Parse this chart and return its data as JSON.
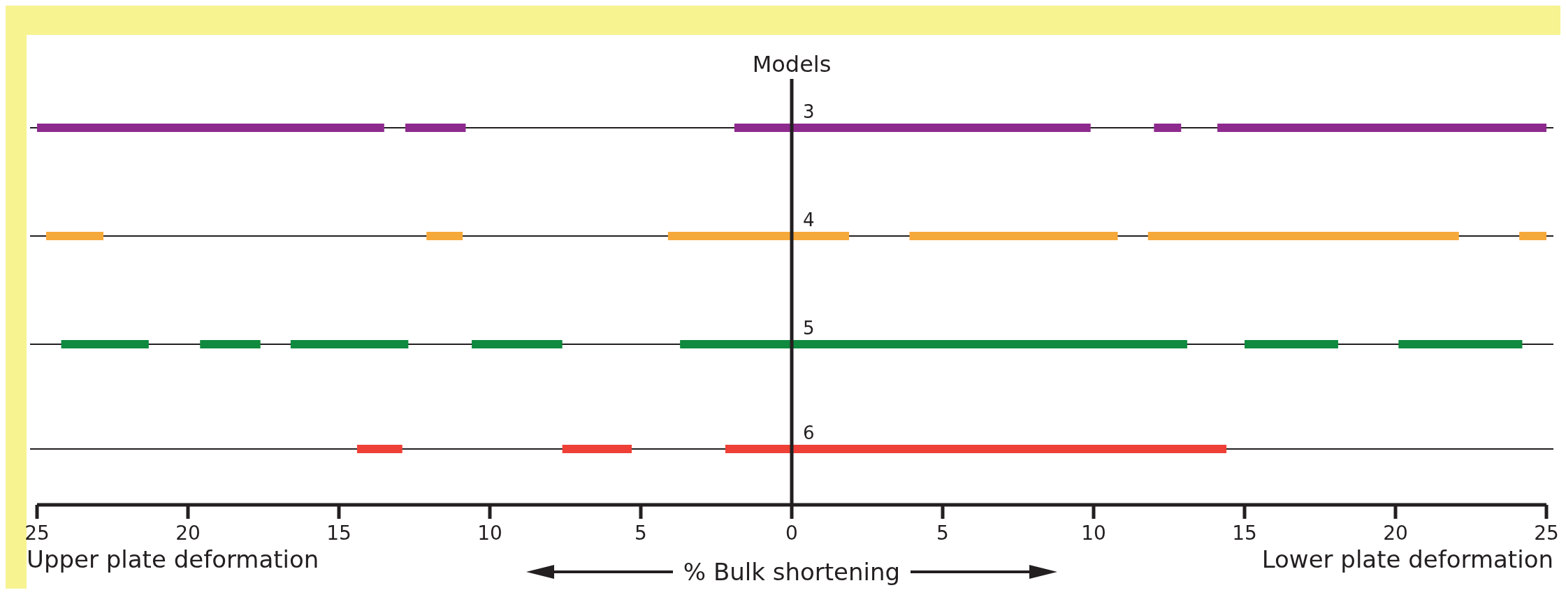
{
  "chart_data": {
    "type": "bar",
    "orientation": "horizontal",
    "ylabel": "Models",
    "xlabel": "% Bulk shortening",
    "annotations": [
      "Upper plate deformation",
      "Lower plate deformation"
    ],
    "categories": [
      "3",
      "4",
      "5",
      "6"
    ],
    "xlim": [
      -25,
      25
    ],
    "xticks": [
      {
        "value": -25,
        "label": "25"
      },
      {
        "value": -20,
        "label": "20"
      },
      {
        "value": -15,
        "label": "15"
      },
      {
        "value": -10,
        "label": "10"
      },
      {
        "value": -5,
        "label": "5"
      },
      0,
      5,
      10,
      15,
      20,
      25
    ],
    "grid": "y",
    "series": [
      {
        "colors": [
          "#8e2a8e",
          "#f6a93b",
          "#0f8a3e",
          "#ee4036"
        ],
        "base": [
          -25,
          -24.7,
          -24.2,
          -14.4
        ],
        "values": [
          11.5,
          1.9,
          2.9,
          1.5
        ]
      },
      {
        "colors": [
          "#8e2a8e",
          "#f6a93b",
          "#0f8a3e",
          "#ee4036"
        ],
        "base": [
          -12.8,
          -12.1,
          -19.6,
          -7.6
        ],
        "values": [
          2.0,
          1.2,
          2.0,
          2.3
        ]
      },
      {
        "colors": [
          "#8e2a8e",
          "#f6a93b",
          "#0f8a3e",
          "#ee4036"
        ],
        "base": [
          -1.9,
          -4.1,
          -16.6,
          -2.2
        ],
        "values": [
          11.8,
          6.0,
          3.9,
          16.6
        ]
      },
      {
        "colors": [
          "#8e2a8e",
          "#f6a93b",
          "#0f8a3e",
          null
        ],
        "base": [
          12.0,
          3.9,
          -10.6,
          null
        ],
        "values": [
          0.9,
          6.9,
          3.0,
          null
        ]
      },
      {
        "colors": [
          "#8e2a8e",
          "#f6a93b",
          "#0f8a3e",
          null
        ],
        "base": [
          14.1,
          11.8,
          -3.7,
          null
        ],
        "values": [
          10.9,
          10.3,
          16.8,
          null
        ]
      },
      {
        "colors": [
          null,
          "#f6a93b",
          "#0f8a3e",
          null
        ],
        "base": [
          null,
          24.1,
          15.0,
          null
        ],
        "values": [
          null,
          0.9,
          3.1,
          null
        ]
      },
      {
        "colors": [
          null,
          null,
          "#0f8a3e",
          null
        ],
        "base": [
          null,
          null,
          20.1,
          null
        ],
        "values": [
          null,
          null,
          4.1,
          null
        ]
      }
    ]
  }
}
